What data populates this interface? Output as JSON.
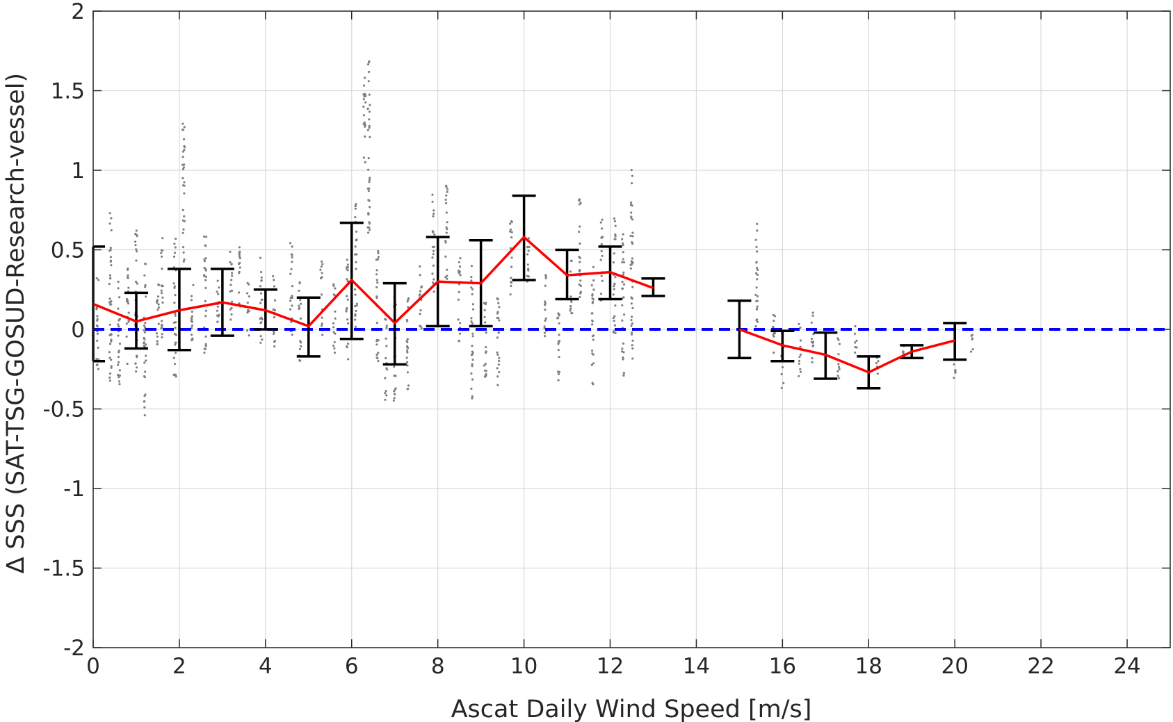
{
  "chart_data": {
    "type": "scatter",
    "title": "",
    "xlabel": "Ascat Daily Wind Speed [m/s]",
    "ylabel": "∆ SSS (SAT-TSG-GOSUD-Research-vessel)",
    "xlim": [
      0,
      25
    ],
    "ylim": [
      -2,
      2
    ],
    "xticks": [
      0,
      2,
      4,
      6,
      8,
      10,
      12,
      14,
      16,
      18,
      20,
      22,
      24
    ],
    "yticks": [
      -2,
      -1.5,
      -1,
      -0.5,
      0,
      0.5,
      1,
      1.5,
      2
    ],
    "xtick_labels": [
      "0",
      "2",
      "4",
      "6",
      "8",
      "10",
      "12",
      "14",
      "16",
      "18",
      "20",
      "22",
      "24"
    ],
    "ytick_labels": [
      "-2",
      "-1.5",
      "-1",
      "-0.5",
      "0",
      "0.5",
      "1",
      "1.5",
      "2"
    ],
    "grid": true,
    "reference_line": {
      "y": 0,
      "style": "dashed",
      "color": "#0000ff"
    },
    "colors": {
      "scatter": "#808080",
      "mean": "#ff0000",
      "errorbar": "#000000",
      "grid": "#d9d9d9",
      "axis": "#262626"
    },
    "mean_series": {
      "segments": [
        {
          "x": [
            0,
            1,
            2,
            3,
            4,
            5,
            6,
            7,
            8,
            9,
            10,
            11,
            12,
            13
          ],
          "y": [
            0.16,
            0.05,
            0.12,
            0.17,
            0.12,
            0.02,
            0.31,
            0.04,
            0.3,
            0.29,
            0.58,
            0.34,
            0.36,
            0.26
          ]
        },
        {
          "x": [
            15,
            16,
            17,
            18,
            19,
            20
          ],
          "y": [
            0.0,
            -0.1,
            -0.16,
            -0.27,
            -0.14,
            -0.07
          ]
        }
      ]
    },
    "error_bars": [
      {
        "x": 0,
        "low": -0.2,
        "high": 0.52
      },
      {
        "x": 1,
        "low": -0.12,
        "high": 0.23
      },
      {
        "x": 2,
        "low": -0.13,
        "high": 0.38
      },
      {
        "x": 3,
        "low": -0.04,
        "high": 0.38
      },
      {
        "x": 4,
        "low": 0.0,
        "high": 0.25
      },
      {
        "x": 5,
        "low": -0.17,
        "high": 0.2
      },
      {
        "x": 6,
        "low": -0.06,
        "high": 0.67
      },
      {
        "x": 7,
        "low": -0.22,
        "high": 0.29
      },
      {
        "x": 8,
        "low": 0.02,
        "high": 0.58
      },
      {
        "x": 9,
        "low": 0.02,
        "high": 0.56
      },
      {
        "x": 10,
        "low": 0.31,
        "high": 0.84
      },
      {
        "x": 11,
        "low": 0.19,
        "high": 0.5
      },
      {
        "x": 12,
        "low": 0.19,
        "high": 0.52
      },
      {
        "x": 13,
        "low": 0.21,
        "high": 0.32
      },
      {
        "x": 15,
        "low": -0.18,
        "high": 0.18
      },
      {
        "x": 16,
        "low": -0.2,
        "high": -0.01
      },
      {
        "x": 17,
        "low": -0.31,
        "high": -0.02
      },
      {
        "x": 18,
        "low": -0.37,
        "high": -0.17
      },
      {
        "x": 19,
        "low": -0.18,
        "high": -0.1
      },
      {
        "x": 20,
        "low": -0.19,
        "high": 0.04
      }
    ],
    "scatter_clusters": [
      {
        "x": 0.1,
        "ymin": -0.3,
        "ymax": 0.35
      },
      {
        "x": 0.4,
        "ymin": -0.33,
        "ymax": 0.78
      },
      {
        "x": 0.6,
        "ymin": -0.35,
        "ymax": 0.42
      },
      {
        "x": 0.8,
        "ymin": -0.25,
        "ymax": 0.4
      },
      {
        "x": 1.0,
        "ymin": -0.3,
        "ymax": 0.7
      },
      {
        "x": 1.2,
        "ymin": -0.54,
        "ymax": 0.45
      },
      {
        "x": 1.5,
        "ymin": -0.1,
        "ymax": 0.35
      },
      {
        "x": 1.6,
        "ymin": -0.05,
        "ymax": 0.65
      },
      {
        "x": 1.9,
        "ymin": -0.3,
        "ymax": 0.6
      },
      {
        "x": 2.1,
        "ymin": 0.4,
        "ymax": 1.3
      },
      {
        "x": 2.3,
        "ymin": -0.1,
        "ymax": 0.35
      },
      {
        "x": 2.6,
        "ymin": -0.2,
        "ymax": 0.6
      },
      {
        "x": 2.9,
        "ymin": 0.0,
        "ymax": 0.4
      },
      {
        "x": 3.2,
        "ymin": 0.05,
        "ymax": 0.5
      },
      {
        "x": 3.4,
        "ymin": 0.1,
        "ymax": 0.55
      },
      {
        "x": 3.6,
        "ymin": -0.05,
        "ymax": 0.3
      },
      {
        "x": 3.9,
        "ymin": -0.1,
        "ymax": 0.5
      },
      {
        "x": 4.2,
        "ymin": -0.12,
        "ymax": 0.35
      },
      {
        "x": 4.6,
        "ymin": -0.1,
        "ymax": 0.55
      },
      {
        "x": 4.8,
        "ymin": -0.2,
        "ymax": 0.3
      },
      {
        "x": 5.3,
        "ymin": -0.05,
        "ymax": 0.45
      },
      {
        "x": 5.6,
        "ymin": -0.15,
        "ymax": 0.3
      },
      {
        "x": 5.9,
        "ymin": -0.2,
        "ymax": 0.45
      },
      {
        "x": 6.1,
        "ymin": 0.0,
        "ymax": 0.8
      },
      {
        "x": 6.3,
        "ymin": 1.0,
        "ymax": 1.6
      },
      {
        "x": 6.4,
        "ymin": 0.6,
        "ymax": 1.7
      },
      {
        "x": 6.6,
        "ymin": -0.2,
        "ymax": 0.5
      },
      {
        "x": 6.8,
        "ymin": -0.45,
        "ymax": 0.1
      },
      {
        "x": 7.0,
        "ymin": -0.5,
        "ymax": 0.3
      },
      {
        "x": 7.3,
        "ymin": -0.45,
        "ymax": 0.2
      },
      {
        "x": 7.6,
        "ymin": -0.05,
        "ymax": 0.4
      },
      {
        "x": 7.9,
        "ymin": 0.2,
        "ymax": 0.85
      },
      {
        "x": 8.2,
        "ymin": 0.3,
        "ymax": 0.92
      },
      {
        "x": 8.5,
        "ymin": -0.1,
        "ymax": 0.5
      },
      {
        "x": 8.8,
        "ymin": -0.45,
        "ymax": 0.4
      },
      {
        "x": 9.1,
        "ymin": -0.35,
        "ymax": 0.2
      },
      {
        "x": 9.4,
        "ymin": -0.35,
        "ymax": 0.3
      },
      {
        "x": 9.7,
        "ymin": 0.2,
        "ymax": 0.7
      },
      {
        "x": 10.1,
        "ymin": 0.25,
        "ymax": 0.65
      },
      {
        "x": 10.5,
        "ymin": -0.05,
        "ymax": 0.4
      },
      {
        "x": 10.8,
        "ymin": -0.35,
        "ymax": 0.2
      },
      {
        "x": 11.1,
        "ymin": 0.1,
        "ymax": 0.45
      },
      {
        "x": 11.3,
        "ymin": 0.2,
        "ymax": 0.82
      },
      {
        "x": 11.6,
        "ymin": -0.35,
        "ymax": 0.4
      },
      {
        "x": 11.8,
        "ymin": 0.15,
        "ymax": 0.7
      },
      {
        "x": 12.1,
        "ymin": -0.05,
        "ymax": 0.72
      },
      {
        "x": 12.3,
        "ymin": -0.3,
        "ymax": 0.6
      },
      {
        "x": 12.5,
        "ymin": -0.2,
        "ymax": 1.02
      },
      {
        "x": 15.4,
        "ymin": -0.05,
        "ymax": 0.74
      },
      {
        "x": 15.8,
        "ymin": -0.2,
        "ymax": 0.1
      },
      {
        "x": 16.0,
        "ymin": -0.38,
        "ymax": 0.0
      },
      {
        "x": 16.4,
        "ymin": -0.3,
        "ymax": 0.05
      },
      {
        "x": 16.7,
        "ymin": -0.25,
        "ymax": 0.12
      },
      {
        "x": 17.3,
        "ymin": -0.35,
        "ymax": -0.05
      },
      {
        "x": 17.7,
        "ymin": -0.15,
        "ymax": 0.05
      },
      {
        "x": 18.2,
        "ymin": -0.3,
        "ymax": -0.15
      },
      {
        "x": 18.8,
        "ymin": -0.18,
        "ymax": -0.1
      },
      {
        "x": 20.0,
        "ymin": -0.35,
        "ymax": -0.2
      },
      {
        "x": 20.4,
        "ymin": -0.15,
        "ymax": 0.02
      }
    ]
  }
}
